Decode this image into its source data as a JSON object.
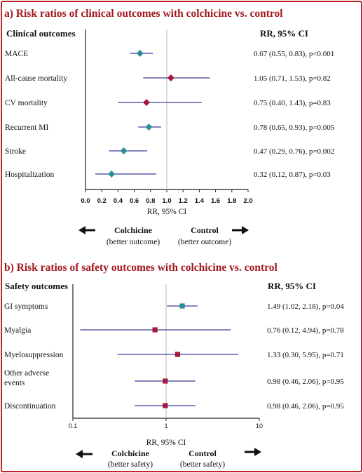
{
  "colors": {
    "title": "#a3191f",
    "frame": "#c0262d",
    "ci_line": "#3b3f9a",
    "teal": "#2a8c96",
    "maroon": "#a3193b",
    "refline": "#c8c8c8"
  },
  "chart_data": [
    {
      "type": "forest",
      "title": "a) Risk ratios of clinical outcomes with colchicine vs. control",
      "row_header": "Clinical outcomes",
      "value_header": "RR, 95% CI",
      "xlabel": "RR, 95% CI",
      "xscale": "linear",
      "xlim": [
        0,
        2.0
      ],
      "ref_value": 1.0,
      "ticks": [
        "0.0",
        "0.2",
        "0.4",
        "0.6",
        "0.8",
        "1.0",
        "1.2",
        "1.4",
        "1.6",
        "1.8",
        "2.0"
      ],
      "left_direction": "Colchicine",
      "left_direction_note": "(better outcome)",
      "right_direction": "Control",
      "right_direction_note": "(better outcome)",
      "rows": [
        {
          "label": "MACE",
          "rr": 0.67,
          "lo": 0.55,
          "hi": 0.83,
          "ci_text": "0.67 (0.55, 0.83), p<0.001",
          "color": "teal",
          "marker": "diamond"
        },
        {
          "label": "All-cause mortality",
          "rr": 1.05,
          "lo": 0.71,
          "hi": 1.53,
          "ci_text": "1.05 (0.71, 1.53), p=0.82",
          "color": "maroon",
          "marker": "diamond"
        },
        {
          "label": "CV mortality",
          "rr": 0.75,
          "lo": 0.4,
          "hi": 1.43,
          "ci_text": "0.75 (0.40, 1.43), p=0.83",
          "color": "maroon",
          "marker": "diamond"
        },
        {
          "label": "Recurrent MI",
          "rr": 0.78,
          "lo": 0.65,
          "hi": 0.93,
          "ci_text": "0.78 (0.65, 0.93), p=0.005",
          "color": "teal",
          "marker": "diamond"
        },
        {
          "label": "Stroke",
          "rr": 0.47,
          "lo": 0.29,
          "hi": 0.76,
          "ci_text": "0.47 (0.29, 0.76), p=0.002",
          "color": "teal",
          "marker": "diamond"
        },
        {
          "label": "Hospitalization",
          "rr": 0.32,
          "lo": 0.12,
          "hi": 0.87,
          "ci_text": "0.32 (0.12, 0.87), p=0.03",
          "color": "teal",
          "marker": "diamond"
        }
      ]
    },
    {
      "type": "forest",
      "title": "b) Risk ratios of safety outcomes with colchicine vs. control",
      "row_header": "Safety outcomes",
      "value_header": "RR, 95% CI",
      "xlabel": "RR, 95% CI",
      "xscale": "log",
      "xlim": [
        0.1,
        10
      ],
      "ref_value": 1,
      "ticks": [
        "0.1",
        "1",
        "10"
      ],
      "left_direction": "Colchicine",
      "left_direction_note": "(better safety)",
      "right_direction": "Control",
      "right_direction_note": "(better safety)",
      "rows": [
        {
          "label": "GI symptoms",
          "rr": 1.49,
          "lo": 1.02,
          "hi": 2.18,
          "ci_text": "1.49 (1.02, 2.18), p=0.04",
          "color": "teal",
          "marker": "square"
        },
        {
          "label": "Myalgia",
          "rr": 0.76,
          "lo": 0.12,
          "hi": 4.94,
          "ci_text": "0.76 (0.12, 4.94), p=0.78",
          "color": "maroon",
          "marker": "square"
        },
        {
          "label": "Myelosuppression",
          "rr": 1.33,
          "lo": 0.3,
          "hi": 5.95,
          "ci_text": "1.33 (0.30, 5.95), p=0.71",
          "color": "maroon",
          "marker": "square"
        },
        {
          "label": [
            "Other adverse",
            "events"
          ],
          "rr": 0.98,
          "lo": 0.46,
          "hi": 2.06,
          "ci_text": "0.98 (0.46, 2.06), p=0.95",
          "color": "maroon",
          "marker": "square"
        },
        {
          "label": "Discontinuation",
          "rr": 0.98,
          "lo": 0.46,
          "hi": 2.06,
          "ci_text": "0.98 (0.46, 2.06), p=0.95",
          "color": "maroon",
          "marker": "square"
        }
      ]
    }
  ]
}
